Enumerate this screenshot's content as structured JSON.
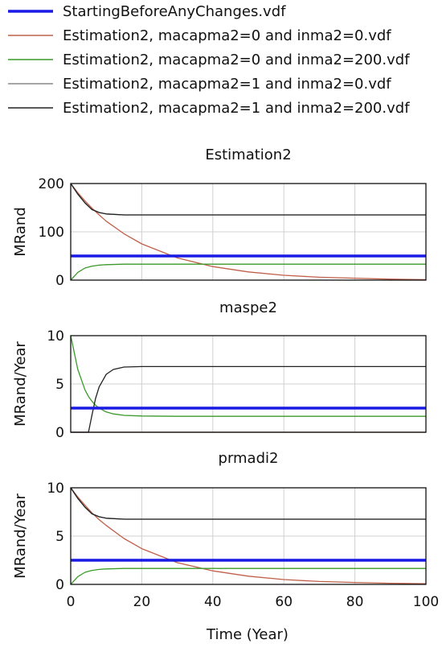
{
  "legend": [
    {
      "name": "StartingBeforeAnyChanges.vdf",
      "color": "#1a1ae6",
      "bold": true
    },
    {
      "name": "Estimation2, macapma2=0 and inma2=0.vdf",
      "color": "#c0604a",
      "bold": false
    },
    {
      "name": "Estimation2, macapma2=0 and inma2=200.vdf",
      "color": "#3a9a2a",
      "bold": false
    },
    {
      "name": "Estimation2, macapma2=1 and inma2=0.vdf",
      "color": "#8a8a8a",
      "bold": false
    },
    {
      "name": "Estimation2, macapma2=1 and inma2=200.vdf",
      "color": "#222222",
      "bold": false
    }
  ],
  "xlabel": "Time (Year)",
  "chart_data": [
    {
      "type": "line",
      "title": "Estimation2",
      "ylabel": "MRand",
      "xlim": [
        0,
        100
      ],
      "ylim": [
        0,
        200
      ],
      "yticks": [
        0,
        100,
        200
      ],
      "xticks": [
        0,
        20,
        40,
        60,
        80,
        100
      ],
      "grid": true,
      "x": [
        0,
        2,
        4,
        6,
        8,
        10,
        15,
        20,
        30,
        40,
        50,
        60,
        70,
        80,
        90,
        100
      ],
      "series": [
        {
          "name": "StartingBeforeAnyChanges.vdf",
          "values": [
            50,
            50,
            50,
            50,
            50,
            50,
            50,
            50,
            50,
            50,
            50,
            50,
            50,
            50,
            50,
            50
          ]
        },
        {
          "name": "Estimation2, macapma2=0 and inma2=0.vdf",
          "values": [
            200,
            181,
            164,
            149,
            135,
            122,
            96,
            75,
            46,
            28,
            17,
            10,
            6,
            4,
            2,
            1
          ]
        },
        {
          "name": "Estimation2, macapma2=0 and inma2=200.vdf",
          "values": [
            0,
            16,
            25,
            29,
            31,
            32,
            33,
            33,
            33,
            33,
            33,
            33,
            33,
            33,
            33,
            33
          ]
        },
        {
          "name": "Estimation2, macapma2=1 and inma2=0.vdf",
          "values": [
            200,
            178,
            160,
            146,
            140,
            137,
            135,
            135,
            135,
            135,
            135,
            135,
            135,
            135,
            135,
            135
          ]
        },
        {
          "name": "Estimation2, macapma2=1 and inma2=200.vdf",
          "values": [
            200,
            178,
            160,
            146,
            140,
            137,
            135,
            135,
            135,
            135,
            135,
            135,
            135,
            135,
            135,
            135
          ]
        }
      ]
    },
    {
      "type": "line",
      "title": "maspe2",
      "ylabel": "MRand/Year",
      "xlim": [
        0,
        100
      ],
      "ylim": [
        0,
        10
      ],
      "yticks": [
        0,
        5,
        10
      ],
      "xticks": [
        0,
        20,
        40,
        60,
        80,
        100
      ],
      "grid": true,
      "x": [
        0,
        2,
        4,
        5,
        6,
        7,
        8,
        10,
        12,
        15,
        20,
        30,
        40,
        50,
        60,
        70,
        80,
        90,
        100
      ],
      "series": [
        {
          "name": "StartingBeforeAnyChanges.vdf",
          "values": [
            2.5,
            2.5,
            2.5,
            2.5,
            2.5,
            2.5,
            2.5,
            2.5,
            2.5,
            2.5,
            2.5,
            2.5,
            2.5,
            2.5,
            2.5,
            2.5,
            2.5,
            2.5,
            2.5
          ]
        },
        {
          "name": "Estimation2, macapma2=0 and inma2=0.vdf",
          "values": [
            0,
            0,
            0,
            0,
            0,
            0,
            0,
            0,
            0,
            0,
            0,
            0,
            0,
            0,
            0,
            0,
            0,
            0,
            0
          ]
        },
        {
          "name": "Estimation2, macapma2=0 and inma2=200.vdf",
          "values": [
            10,
            6.5,
            4.4,
            3.7,
            3.2,
            2.8,
            2.5,
            2.1,
            1.9,
            1.75,
            1.68,
            1.65,
            1.65,
            1.65,
            1.65,
            1.65,
            1.65,
            1.65,
            1.65
          ]
        },
        {
          "name": "Estimation2, macapma2=1 and inma2=0.vdf",
          "values": [
            0,
            0,
            0,
            0,
            0,
            0,
            0,
            0,
            0,
            0,
            0,
            0,
            0,
            0,
            0,
            0,
            0,
            0,
            0
          ]
        },
        {
          "name": "Estimation2, macapma2=1 and inma2=200.vdf",
          "values": [
            0,
            0,
            0,
            0,
            1.8,
            3.5,
            4.7,
            6.0,
            6.5,
            6.75,
            6.8,
            6.8,
            6.8,
            6.8,
            6.8,
            6.8,
            6.8,
            6.8,
            6.8
          ]
        }
      ]
    },
    {
      "type": "line",
      "title": "prmadi2",
      "ylabel": "MRand/Year",
      "xlim": [
        0,
        100
      ],
      "ylim": [
        0,
        10
      ],
      "yticks": [
        0,
        5,
        10
      ],
      "xticks": [
        0,
        20,
        40,
        60,
        80,
        100
      ],
      "grid": true,
      "x": [
        0,
        2,
        4,
        6,
        8,
        10,
        15,
        20,
        30,
        40,
        50,
        60,
        70,
        80,
        90,
        100
      ],
      "series": [
        {
          "name": "StartingBeforeAnyChanges.vdf",
          "values": [
            2.5,
            2.5,
            2.5,
            2.5,
            2.5,
            2.5,
            2.5,
            2.5,
            2.5,
            2.5,
            2.5,
            2.5,
            2.5,
            2.5,
            2.5,
            2.5
          ]
        },
        {
          "name": "Estimation2, macapma2=0 and inma2=0.vdf",
          "values": [
            10,
            9.05,
            8.2,
            7.4,
            6.7,
            6.1,
            4.75,
            3.7,
            2.25,
            1.4,
            0.85,
            0.5,
            0.3,
            0.2,
            0.12,
            0.07
          ]
        },
        {
          "name": "Estimation2, macapma2=0 and inma2=200.vdf",
          "values": [
            0,
            0.8,
            1.25,
            1.45,
            1.55,
            1.6,
            1.65,
            1.65,
            1.65,
            1.65,
            1.65,
            1.65,
            1.65,
            1.65,
            1.65,
            1.65
          ]
        },
        {
          "name": "Estimation2, macapma2=1 and inma2=0.vdf",
          "values": [
            10,
            8.9,
            8.0,
            7.3,
            7.0,
            6.85,
            6.75,
            6.75,
            6.75,
            6.75,
            6.75,
            6.75,
            6.75,
            6.75,
            6.75,
            6.75
          ]
        },
        {
          "name": "Estimation2, macapma2=1 and inma2=200.vdf",
          "values": [
            10,
            8.9,
            8.0,
            7.3,
            7.0,
            6.85,
            6.75,
            6.75,
            6.75,
            6.75,
            6.75,
            6.75,
            6.75,
            6.75,
            6.75,
            6.75
          ]
        }
      ]
    }
  ]
}
